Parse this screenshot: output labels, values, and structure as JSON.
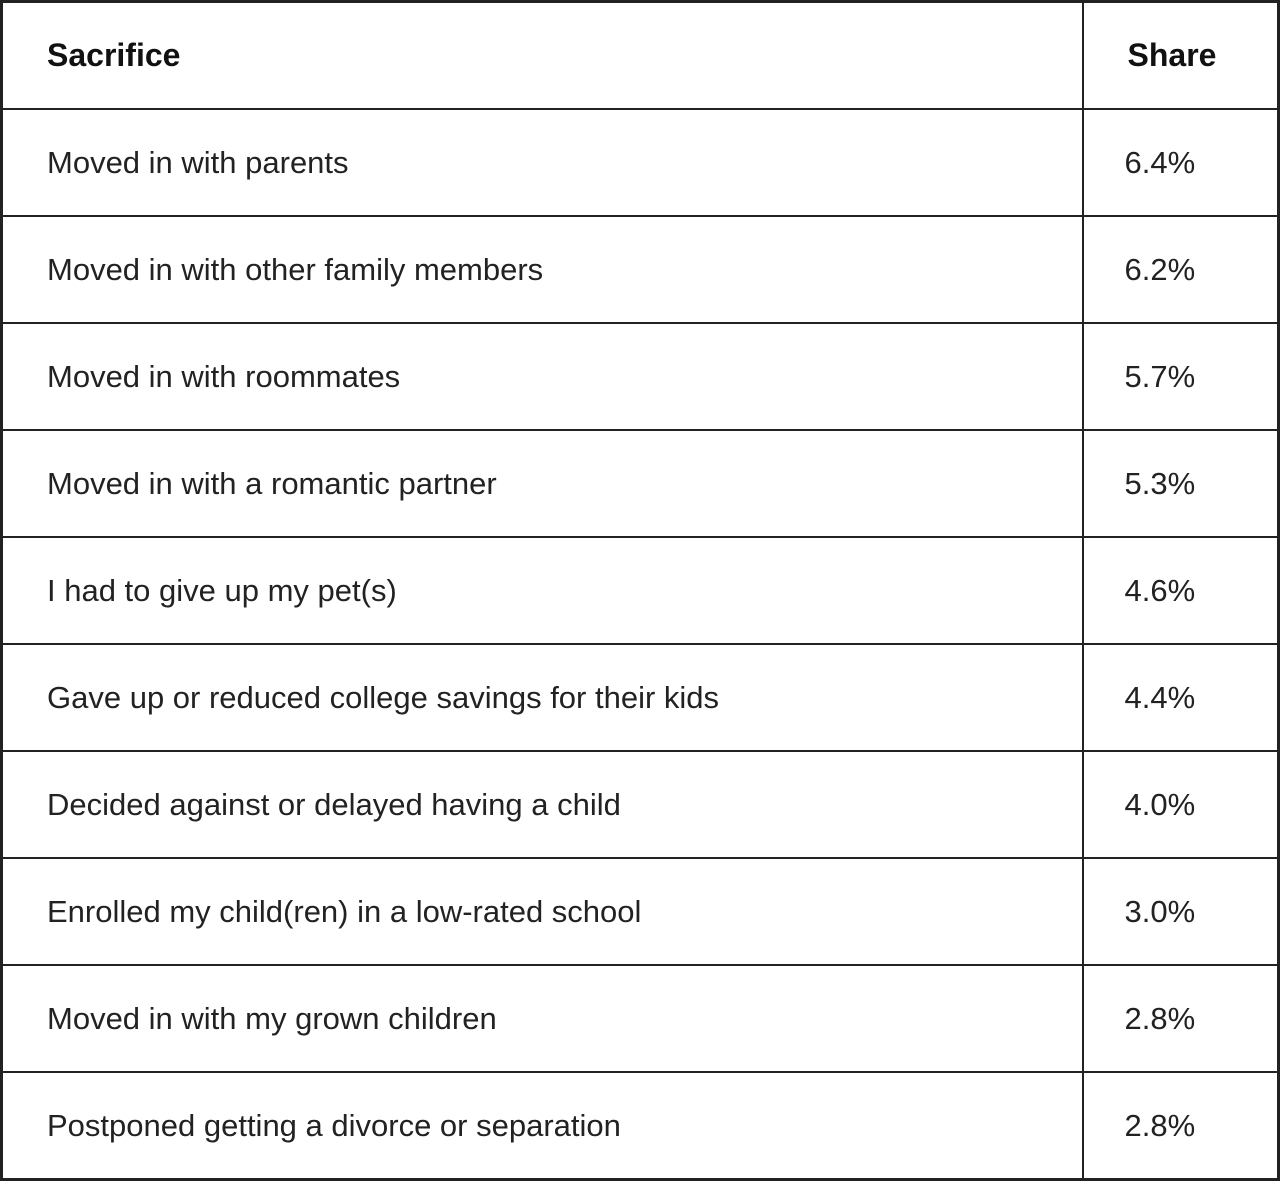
{
  "table": {
    "header": [
      "Sacrifice",
      "Share"
    ],
    "rows": [
      [
        "Moved in with parents",
        "6.4%"
      ],
      [
        "Moved in with other family members",
        "6.2%"
      ],
      [
        "Moved in with roommates",
        "5.7%"
      ],
      [
        "Moved in with a romantic partner",
        "5.3%"
      ],
      [
        "I had to give up my pet(s)",
        "4.6%"
      ],
      [
        "Gave up or reduced college savings for their kids",
        "4.4%"
      ],
      [
        "Decided against or delayed having a child",
        "4.0%"
      ],
      [
        "Enrolled my child(ren) in a low-rated school",
        "3.0%"
      ],
      [
        "Moved in with my grown children",
        "2.8%"
      ],
      [
        "Postponed getting a divorce or separation",
        "2.8%"
      ]
    ]
  }
}
